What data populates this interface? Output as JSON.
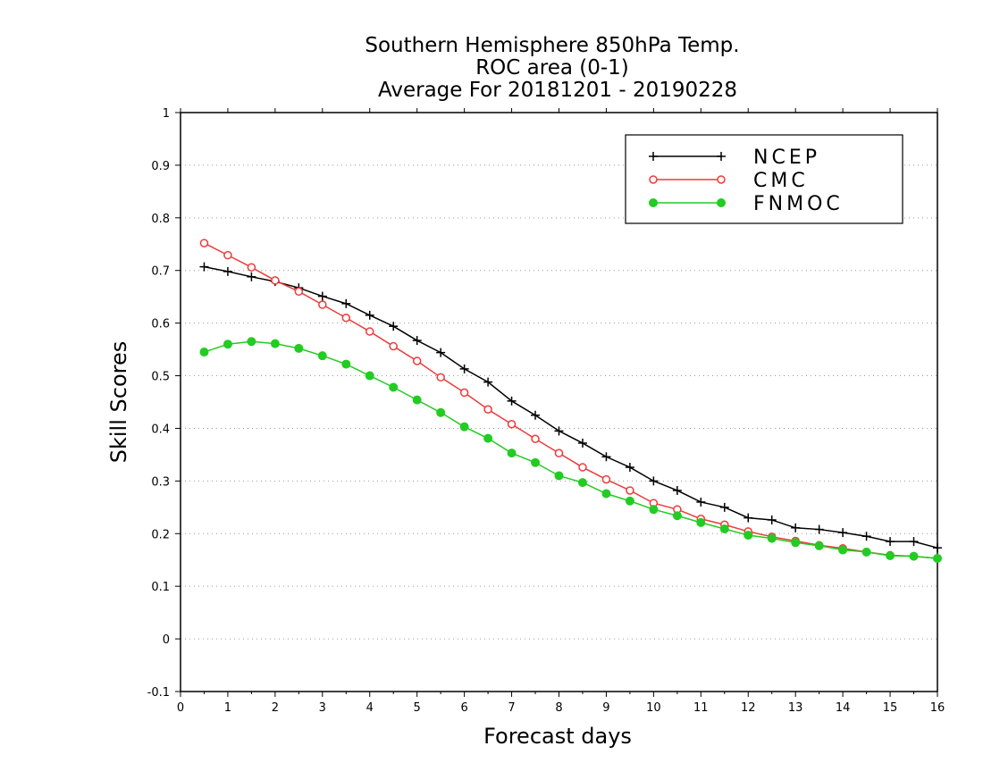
{
  "chart_data": {
    "type": "line",
    "title_lines": [
      "Southern Hemisphere 850hPa Temp.",
      "ROC area (0-1)",
      "Average For 20181201 - 20190228"
    ],
    "xlabel": "Forecast days",
    "ylabel": "Skill Scores",
    "xlim": [
      0,
      16
    ],
    "ylim": [
      -0.1,
      1
    ],
    "xticks": [
      0,
      1,
      2,
      3,
      4,
      5,
      6,
      7,
      8,
      9,
      10,
      11,
      12,
      13,
      14,
      15,
      16
    ],
    "xtick_labels": [
      "0",
      "1",
      "2",
      "3",
      "4",
      "5",
      "6",
      "7",
      "8",
      "9",
      "10",
      "11",
      "12",
      "13",
      "14",
      "15",
      "16"
    ],
    "yticks": [
      -0.1,
      0,
      0.1,
      0.2,
      0.3,
      0.4,
      0.5,
      0.6,
      0.7,
      0.8,
      0.9,
      1
    ],
    "ytick_labels": [
      "-0.1",
      "0",
      "0.1",
      "0.2",
      "0.3",
      "0.4",
      "0.5",
      "0.6",
      "0.7",
      "0.8",
      "0.9",
      "1"
    ],
    "grid": "horizontal dotted",
    "legend_position": "top-right",
    "x": [
      0.5,
      1,
      1.5,
      2,
      2.5,
      3,
      3.5,
      4,
      4.5,
      5,
      5.5,
      6,
      6.5,
      7,
      7.5,
      8,
      8.5,
      9,
      9.5,
      10,
      10.5,
      11,
      11.5,
      12,
      12.5,
      13,
      13.5,
      14,
      14.5,
      15,
      15.5,
      16
    ],
    "series": [
      {
        "name": "NCEP",
        "color": "#000000",
        "marker": "plus",
        "values": [
          0.707,
          0.698,
          0.688,
          0.679,
          0.667,
          0.651,
          0.637,
          0.615,
          0.594,
          0.567,
          0.544,
          0.513,
          0.488,
          0.452,
          0.425,
          0.395,
          0.372,
          0.346,
          0.326,
          0.3,
          0.282,
          0.26,
          0.25,
          0.23,
          0.226,
          0.211,
          0.208,
          0.202,
          0.195,
          0.185,
          0.185,
          0.173
        ]
      },
      {
        "name": "CMC",
        "color": "#ee3a3a",
        "marker": "open-circle",
        "values": [
          0.752,
          0.729,
          0.706,
          0.681,
          0.66,
          0.635,
          0.61,
          0.584,
          0.556,
          0.528,
          0.497,
          0.468,
          0.436,
          0.408,
          0.38,
          0.353,
          0.326,
          0.303,
          0.282,
          0.258,
          0.246,
          0.228,
          0.217,
          0.204,
          0.194,
          0.186,
          0.178,
          0.172,
          0.165,
          0.159,
          0.157,
          0.153
        ]
      },
      {
        "name": "FNMOC",
        "color": "#22cc22",
        "marker": "filled-circle",
        "values": [
          0.545,
          0.56,
          0.565,
          0.561,
          0.552,
          0.538,
          0.522,
          0.5,
          0.478,
          0.454,
          0.43,
          0.403,
          0.381,
          0.353,
          0.335,
          0.31,
          0.297,
          0.276,
          0.262,
          0.246,
          0.234,
          0.221,
          0.209,
          0.197,
          0.191,
          0.183,
          0.177,
          0.169,
          0.165,
          0.158,
          0.157,
          0.153
        ]
      }
    ]
  }
}
